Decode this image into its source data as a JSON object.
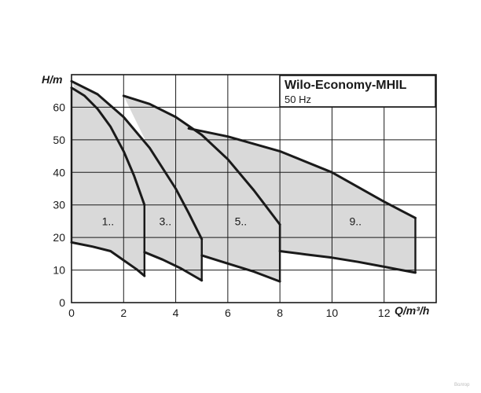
{
  "chart_data": {
    "type": "area",
    "title": "Wilo-Economy-MHIL",
    "subtitle": "50 Hz",
    "xlabel": "Q/m³/h",
    "ylabel": "H/m",
    "xlim": [
      0,
      14
    ],
    "ylim": [
      0,
      70
    ],
    "xticks": [
      0,
      2,
      4,
      6,
      8,
      10,
      12
    ],
    "yticks": [
      0,
      10,
      20,
      30,
      40,
      50,
      60
    ],
    "grid": true,
    "regions": [
      {
        "label": "1..",
        "label_pos": [
          1.4,
          25
        ],
        "top_curve": [
          [
            0,
            66
          ],
          [
            0.5,
            63.5
          ],
          [
            1,
            59.5
          ],
          [
            1.5,
            54
          ],
          [
            2,
            46.5
          ],
          [
            2.4,
            39
          ],
          [
            2.8,
            30
          ]
        ],
        "bottom_curve": [
          [
            0,
            18.5
          ],
          [
            0.8,
            17.2
          ],
          [
            1.5,
            15.8
          ],
          [
            2,
            13
          ],
          [
            2.5,
            10.2
          ],
          [
            2.8,
            8.2
          ]
        ],
        "left_limit": [
          [
            0,
            18.5
          ],
          [
            0,
            66
          ]
        ],
        "right_limit": [
          [
            2.8,
            8.2
          ],
          [
            2.8,
            30
          ]
        ]
      },
      {
        "label": "3..",
        "label_pos": [
          3.6,
          25
        ],
        "top_curve": [
          [
            0,
            68
          ],
          [
            1,
            64
          ],
          [
            2,
            57
          ],
          [
            3,
            47.5
          ],
          [
            4,
            35
          ],
          [
            4.5,
            27.5
          ],
          [
            5,
            19.5
          ]
        ],
        "bottom_curve": [
          [
            2.8,
            15.5
          ],
          [
            3.5,
            13.2
          ],
          [
            4.2,
            10.5
          ],
          [
            5,
            6.8
          ]
        ],
        "left_limit": [
          [
            2.8,
            15.5
          ],
          [
            2.8,
            30
          ]
        ],
        "right_limit": [
          [
            5,
            6.8
          ],
          [
            5,
            19.5
          ]
        ]
      },
      {
        "label": "5..",
        "label_pos": [
          6.5,
          25
        ],
        "top_curve": [
          [
            2,
            63.5
          ],
          [
            3,
            61
          ],
          [
            4,
            57
          ],
          [
            5,
            51.5
          ],
          [
            6,
            44
          ],
          [
            7,
            34.5
          ],
          [
            8,
            24
          ]
        ],
        "bottom_curve": [
          [
            5,
            14.5
          ],
          [
            6,
            12
          ],
          [
            7,
            9.5
          ],
          [
            8,
            6.5
          ]
        ],
        "left_limit": [
          [
            5,
            14.5
          ],
          [
            5,
            19.5
          ]
        ],
        "right_limit": [
          [
            8,
            6.5
          ],
          [
            8,
            24
          ]
        ]
      },
      {
        "label": "9..",
        "label_pos": [
          10.9,
          25
        ],
        "top_curve": [
          [
            4.5,
            53.5
          ],
          [
            6,
            51
          ],
          [
            8,
            46.5
          ],
          [
            10,
            40
          ],
          [
            12,
            31
          ],
          [
            13.2,
            26
          ]
        ],
        "bottom_curve": [
          [
            8,
            15.8
          ],
          [
            9,
            14.8
          ],
          [
            10,
            13.8
          ],
          [
            11,
            12.5
          ],
          [
            12,
            11
          ],
          [
            13.2,
            9.2
          ]
        ],
        "left_limit": [
          [
            8,
            15.8
          ],
          [
            8,
            24
          ]
        ],
        "right_limit": [
          [
            13.2,
            9.2
          ],
          [
            13.2,
            26
          ]
        ]
      }
    ],
    "colors": {
      "fill": "#d9d9d9",
      "curve": "#1a1a1a",
      "grid": "#1a1a1a",
      "background": "#ffffff"
    }
  },
  "watermark": "Волгор"
}
